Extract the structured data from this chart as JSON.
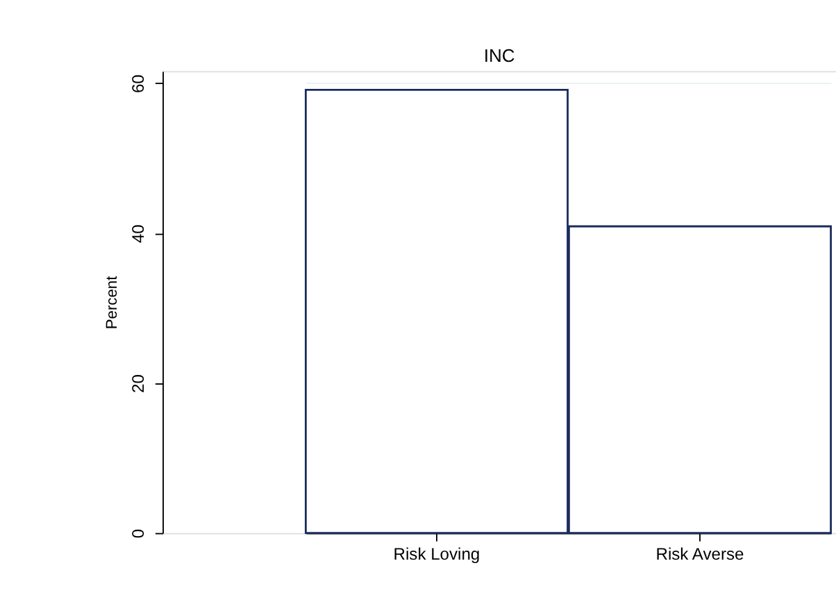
{
  "chart_data": {
    "type": "bar",
    "title": "INC",
    "ylabel": "Percent",
    "categories": [
      "Risk Loving",
      "Risk Averse"
    ],
    "values": [
      59.1,
      40.9
    ],
    "color": "#1a2b5c",
    "ylim": [
      0,
      61.6
    ],
    "yticks": [
      0,
      20,
      40,
      60
    ],
    "grid": "y"
  }
}
